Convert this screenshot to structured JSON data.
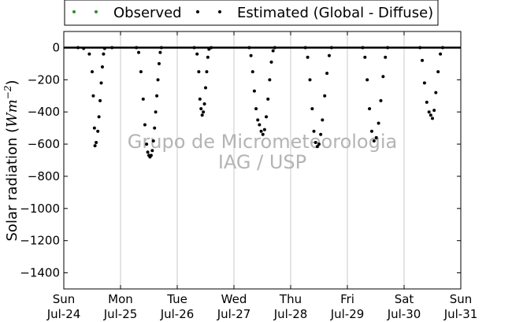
{
  "chart_data": {
    "type": "scatter",
    "title": "",
    "xlabel": "",
    "ylabel": "Solar radiation (",
    "ylabel_unit": "Wm",
    "ylabel_exp": "−2",
    "ylabel_close": ")",
    "ylim": [
      -1500,
      100
    ],
    "xlim": [
      0,
      7
    ],
    "yticks": [
      0,
      -200,
      -400,
      -600,
      -800,
      -1000,
      -1200,
      -1400
    ],
    "ytick_labels": [
      "0",
      "−200",
      "−400",
      "−600",
      "−800",
      "−1000",
      "−1200",
      "−1400"
    ],
    "xticks": [
      {
        "x": 0,
        "day": "Sun",
        "date": "Jul-24"
      },
      {
        "x": 1,
        "day": "Mon",
        "date": "Jul-25"
      },
      {
        "x": 2,
        "day": "Tue",
        "date": "Jul-26"
      },
      {
        "x": 3,
        "day": "Wed",
        "date": "Jul-27"
      },
      {
        "x": 4,
        "day": "Thu",
        "date": "Jul-28"
      },
      {
        "x": 5,
        "day": "Fri",
        "date": "Jul-29"
      },
      {
        "x": 6,
        "day": "Sat",
        "date": "Jul-30"
      },
      {
        "x": 7,
        "day": "Sun",
        "date": "Jul-31"
      }
    ],
    "grid": "vertical",
    "legend_position": "top",
    "watermark": [
      "Grupo de Micrometeorologia",
      "IAG / USP"
    ],
    "series": [
      {
        "name": "Observed",
        "color": "#2e8b2e",
        "marker": "dot",
        "points": []
      },
      {
        "name": "Estimated (Global - Diffuse)",
        "color": "#000000",
        "marker": "dot",
        "points": [
          [
            0.25,
            0
          ],
          [
            0.35,
            -5
          ],
          [
            0.45,
            -40
          ],
          [
            0.5,
            -150
          ],
          [
            0.52,
            -300
          ],
          [
            0.54,
            -500
          ],
          [
            0.55,
            -610
          ],
          [
            0.57,
            -590
          ],
          [
            0.6,
            -520
          ],
          [
            0.62,
            -430
          ],
          [
            0.64,
            -330
          ],
          [
            0.66,
            -220
          ],
          [
            0.68,
            -120
          ],
          [
            0.7,
            -40
          ],
          [
            0.72,
            -5
          ],
          [
            0.85,
            0
          ],
          [
            1.28,
            0
          ],
          [
            1.32,
            -30
          ],
          [
            1.36,
            -150
          ],
          [
            1.4,
            -320
          ],
          [
            1.43,
            -480
          ],
          [
            1.46,
            -600
          ],
          [
            1.48,
            -650
          ],
          [
            1.5,
            -670
          ],
          [
            1.52,
            -680
          ],
          [
            1.54,
            -670
          ],
          [
            1.56,
            -640
          ],
          [
            1.58,
            -580
          ],
          [
            1.6,
            -500
          ],
          [
            1.62,
            -400
          ],
          [
            1.64,
            -300
          ],
          [
            1.66,
            -200
          ],
          [
            1.68,
            -100
          ],
          [
            1.7,
            -30
          ],
          [
            1.72,
            0
          ],
          [
            2.3,
            0
          ],
          [
            2.35,
            -40
          ],
          [
            2.38,
            -150
          ],
          [
            2.4,
            -320
          ],
          [
            2.42,
            -380
          ],
          [
            2.44,
            -420
          ],
          [
            2.46,
            -400
          ],
          [
            2.48,
            -350
          ],
          [
            2.5,
            -250
          ],
          [
            2.52,
            -150
          ],
          [
            2.54,
            -60
          ],
          [
            2.56,
            -10
          ],
          [
            2.6,
            0
          ],
          [
            3.27,
            0
          ],
          [
            3.3,
            -50
          ],
          [
            3.33,
            -150
          ],
          [
            3.36,
            -270
          ],
          [
            3.39,
            -380
          ],
          [
            3.42,
            -450
          ],
          [
            3.45,
            -480
          ],
          [
            3.48,
            -520
          ],
          [
            3.51,
            -540
          ],
          [
            3.54,
            -510
          ],
          [
            3.57,
            -430
          ],
          [
            3.6,
            -320
          ],
          [
            3.63,
            -200
          ],
          [
            3.66,
            -90
          ],
          [
            3.69,
            -20
          ],
          [
            3.72,
            0
          ],
          [
            4.26,
            0
          ],
          [
            4.3,
            -60
          ],
          [
            4.34,
            -200
          ],
          [
            4.38,
            -380
          ],
          [
            4.41,
            -520
          ],
          [
            4.44,
            -590
          ],
          [
            4.47,
            -615
          ],
          [
            4.5,
            -600
          ],
          [
            4.53,
            -540
          ],
          [
            4.56,
            -450
          ],
          [
            4.6,
            -300
          ],
          [
            4.64,
            -160
          ],
          [
            4.68,
            -50
          ],
          [
            4.72,
            0
          ],
          [
            5.27,
            0
          ],
          [
            5.31,
            -60
          ],
          [
            5.35,
            -200
          ],
          [
            5.39,
            -380
          ],
          [
            5.43,
            -520
          ],
          [
            5.47,
            -580
          ],
          [
            5.51,
            -560
          ],
          [
            5.55,
            -470
          ],
          [
            5.59,
            -330
          ],
          [
            5.63,
            -180
          ],
          [
            5.67,
            -60
          ],
          [
            5.71,
            0
          ],
          [
            6.28,
            0
          ],
          [
            6.32,
            -80
          ],
          [
            6.36,
            -220
          ],
          [
            6.4,
            -340
          ],
          [
            6.44,
            -400
          ],
          [
            6.47,
            -420
          ],
          [
            6.5,
            -440
          ],
          [
            6.53,
            -390
          ],
          [
            6.56,
            -280
          ],
          [
            6.6,
            -150
          ],
          [
            6.64,
            -40
          ],
          [
            6.68,
            0
          ]
        ]
      }
    ]
  }
}
